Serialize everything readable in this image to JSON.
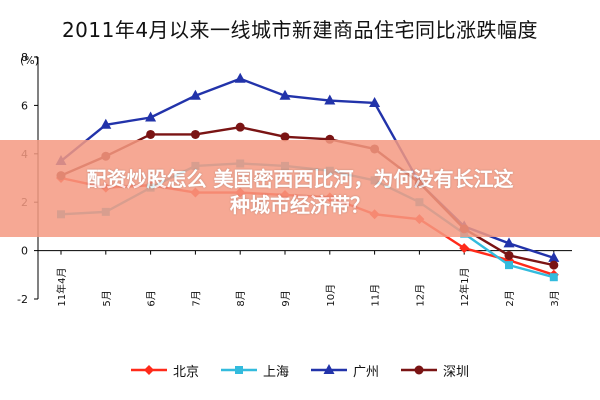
{
  "overlay": {
    "color": "#f59a82",
    "opacity": 0.85,
    "line1": "配资炒股怎么 美国密西西比河，为何没有长江这",
    "line2": "种城市经济带？"
  },
  "chart_data": {
    "type": "line",
    "title": "2011年4月以来一线城市新建商品住宅同比涨跌幅度",
    "ylabel": "(%)",
    "xlabel": "",
    "ylim": [
      -2,
      8
    ],
    "yticks": [
      "-2",
      "0",
      "2",
      "4",
      "6",
      "8"
    ],
    "grid": false,
    "legend_position": "bottom",
    "categories": [
      "11年4月",
      "5月",
      "6月",
      "7月",
      "8月",
      "9月",
      "10月",
      "11月",
      "12月",
      "12年1月",
      "2月",
      "3月"
    ],
    "series": [
      {
        "name": "北京",
        "color": "#ff2a1a",
        "marker": "diamond",
        "values": [
          3.0,
          2.6,
          2.7,
          2.4,
          2.4,
          2.3,
          2.2,
          1.5,
          1.3,
          0.1,
          -0.4,
          -1.0
        ]
      },
      {
        "name": "上海",
        "color": "#33bbdd",
        "marker": "square",
        "values": [
          1.5,
          1.6,
          2.6,
          3.5,
          3.6,
          3.5,
          3.3,
          2.9,
          2.0,
          0.7,
          -0.6,
          -1.1
        ]
      },
      {
        "name": "广州",
        "color": "#2233aa",
        "marker": "triangle",
        "values": [
          3.7,
          5.2,
          5.5,
          6.4,
          7.1,
          6.4,
          6.2,
          6.1,
          2.8,
          1.0,
          0.3,
          -0.3
        ]
      },
      {
        "name": "深圳",
        "color": "#7a1414",
        "marker": "circle",
        "values": [
          3.1,
          3.9,
          4.8,
          4.8,
          5.1,
          4.7,
          4.6,
          4.2,
          2.8,
          0.9,
          -0.2,
          -0.6
        ]
      }
    ]
  }
}
